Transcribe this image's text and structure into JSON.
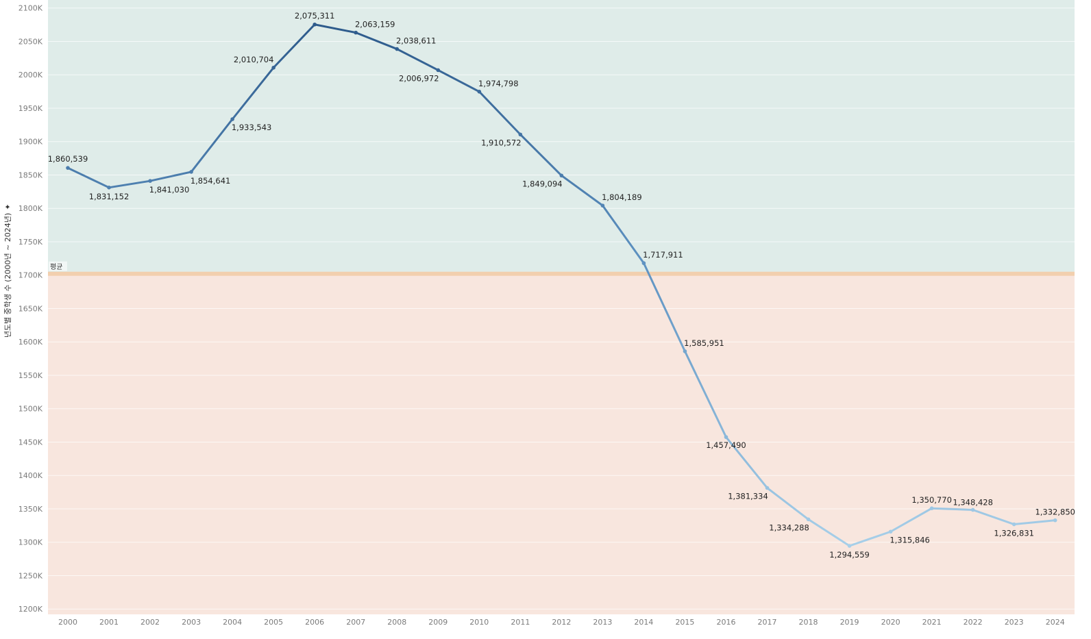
{
  "chart_data": {
    "type": "line",
    "title": "",
    "xlabel": "",
    "ylabel": "년도별 중학생 수 (2000년 ~ 2024년)",
    "x": [
      "2000",
      "2001",
      "2002",
      "2003",
      "2004",
      "2005",
      "2006",
      "2007",
      "2008",
      "2009",
      "2010",
      "2011",
      "2012",
      "2013",
      "2014",
      "2015",
      "2016",
      "2017",
      "2018",
      "2019",
      "2020",
      "2021",
      "2022",
      "2023",
      "2024"
    ],
    "series": [
      {
        "name": "",
        "values": [
          1860539,
          1831152,
          1841030,
          1854641,
          1933543,
          2010704,
          2075311,
          2063159,
          2038611,
          2006972,
          1974798,
          1910572,
          1849094,
          1804189,
          1717911,
          1585951,
          1457490,
          1381334,
          1334288,
          1294559,
          1315846,
          1350770,
          1348428,
          1326831,
          1332850
        ],
        "labels": [
          "1,860,539",
          "1,831,152",
          "1,841,030",
          "1,854,641",
          "1,933,543",
          "2,010,704",
          "2,075,311",
          "2,063,159",
          "2,038,611",
          "2,006,972",
          "1,974,798",
          "1,910,572",
          "1,849,094",
          "1,804,189",
          "1,717,911",
          "1,585,951",
          "1,457,490",
          "1,381,334",
          "1,334,288",
          "1,294,559",
          "1,315,846",
          "1,350,770",
          "1,348,428",
          "1,326,831",
          "1,332,850"
        ]
      }
    ],
    "ylim": [
      1192000,
      2112000
    ],
    "yticks": [
      1200000,
      1250000,
      1300000,
      1350000,
      1400000,
      1450000,
      1500000,
      1550000,
      1600000,
      1650000,
      1700000,
      1750000,
      1800000,
      1850000,
      1900000,
      1950000,
      2000000,
      2050000,
      2100000
    ],
    "ytick_labels": [
      "1200K",
      "1250K",
      "1300K",
      "1350K",
      "1400K",
      "1450K",
      "1500K",
      "1550K",
      "1600K",
      "1650K",
      "1700K",
      "1750K",
      "1800K",
      "1850K",
      "1900K",
      "1950K",
      "2000K",
      "2050K",
      "2100K"
    ],
    "reference_line": {
      "label": "평균",
      "value": 1702000
    },
    "grid": true,
    "legend": "none",
    "colors": {
      "above_band": "#dfece9",
      "below_band": "#f8e6de",
      "reference_line": "#f2cfae",
      "line_high": "#2e5b8c",
      "line_low": "#a9d1ea",
      "gridline": "#ffffff"
    }
  }
}
